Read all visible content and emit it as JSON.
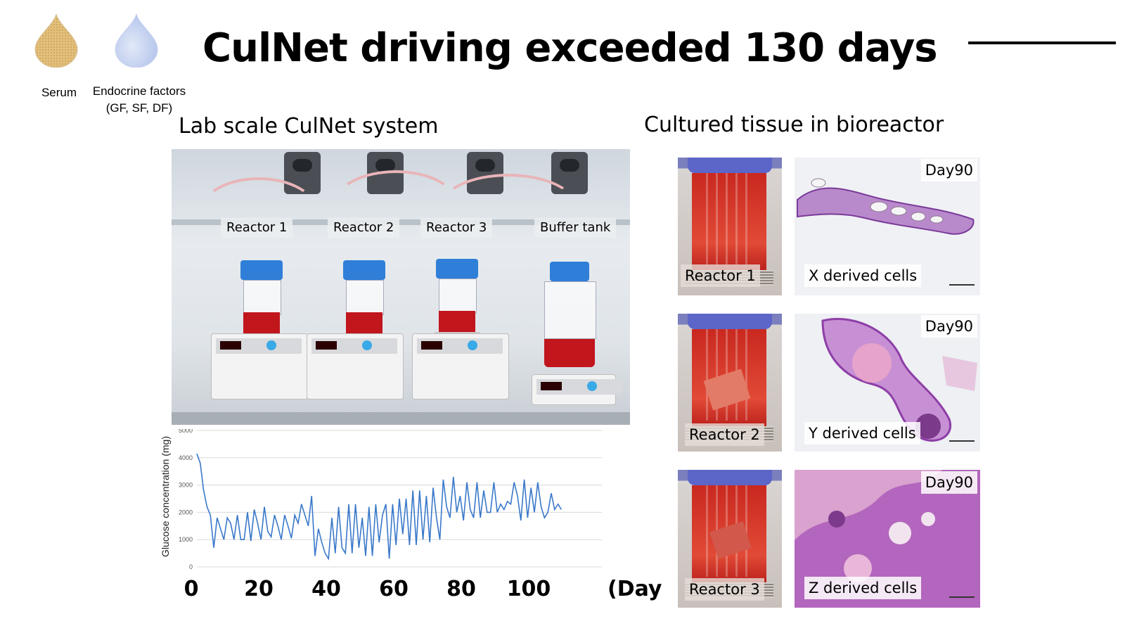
{
  "title": "CulNet driving exceeded 130 days",
  "inputs": {
    "serum_label": "Serum",
    "endocrine_label_line1": "Endocrine factors",
    "endocrine_label_line2": "(GF, SF, DF)"
  },
  "left_section": {
    "title": "Lab scale CulNet system",
    "photo_labels": [
      "Reactor 1",
      "Reactor 2",
      "Reactor 3",
      "Buffer tank"
    ]
  },
  "right_section": {
    "title": "Cultured tissue in bioreactor",
    "rows": [
      {
        "reactor": "Reactor 1",
        "day": "Day90",
        "cells": "X derived cells"
      },
      {
        "reactor": "Reactor 2",
        "day": "Day90",
        "cells": "Y derived cells"
      },
      {
        "reactor": "Reactor 3",
        "day": "Day90",
        "cells": "Z derived cells"
      }
    ]
  },
  "colors": {
    "line": "#3a78c9",
    "grid": "#d9d9d9",
    "reactor_cap": "#2f7fd8",
    "medium": "#c0161c"
  },
  "chart_data": {
    "type": "line",
    "title": "",
    "xlabel": "(Day)",
    "ylabel": "Glucose concentration (mg)",
    "xlim": [
      0,
      120
    ],
    "ylim": [
      0,
      5000
    ],
    "x_ticks": [
      "0",
      "20",
      "40",
      "60",
      "80",
      "100"
    ],
    "y_ticks": [
      "0",
      "1000",
      "2000",
      "3000",
      "4000",
      "5000"
    ],
    "grid": true,
    "series": [
      {
        "x": [
          0,
          1,
          2,
          3,
          4,
          5,
          6,
          7,
          8,
          9,
          10,
          11,
          12,
          13,
          14,
          15,
          16,
          17,
          18,
          19,
          20,
          21,
          22,
          23,
          24,
          25,
          26,
          27,
          28,
          29,
          30,
          31,
          32,
          33,
          34,
          35,
          36,
          37,
          38,
          39,
          40,
          41,
          42,
          43,
          44,
          45,
          46,
          47,
          48,
          49,
          50,
          51,
          52,
          53,
          54,
          55,
          56,
          57,
          58,
          59,
          60,
          61,
          62,
          63,
          64,
          65,
          66,
          67,
          68,
          69,
          70,
          71,
          72,
          73,
          74,
          75,
          76,
          77,
          78,
          79,
          80,
          81,
          82,
          83,
          84,
          85,
          86,
          87,
          88,
          89,
          90,
          91,
          92,
          93,
          94,
          95,
          96,
          97,
          98,
          99,
          100,
          101,
          102,
          103,
          104,
          105,
          106,
          107,
          108
        ],
        "y": [
          4150,
          3800,
          2800,
          2200,
          1900,
          700,
          1800,
          1400,
          1000,
          1800,
          1600,
          1000,
          1900,
          1000,
          1000,
          2000,
          950,
          2100,
          1600,
          1000,
          2200,
          1300,
          1100,
          1900,
          1500,
          1000,
          1900,
          1500,
          1050,
          1900,
          1600,
          2300,
          1900,
          1500,
          2600,
          400,
          1400,
          900,
          500,
          300,
          1800,
          500,
          2200,
          700,
          500,
          2300,
          500,
          2300,
          700,
          1800,
          400,
          2200,
          400,
          2300,
          900,
          1900,
          2300,
          300,
          2300,
          800,
          2500,
          1200,
          2500,
          800,
          2800,
          800,
          2800,
          1000,
          2600,
          900,
          2900,
          1800,
          1000,
          3200,
          2200,
          1800,
          3300,
          2000,
          2600,
          1700,
          3100,
          2100,
          1800,
          3100,
          1800,
          2800,
          2000,
          2000,
          3100,
          2000,
          2300,
          2100,
          2400,
          2300,
          3100,
          2600,
          1700,
          3200,
          1800,
          2900,
          2000,
          3100,
          2200,
          1800,
          2000,
          2700,
          2100,
          2300,
          2100
        ]
      }
    ]
  }
}
